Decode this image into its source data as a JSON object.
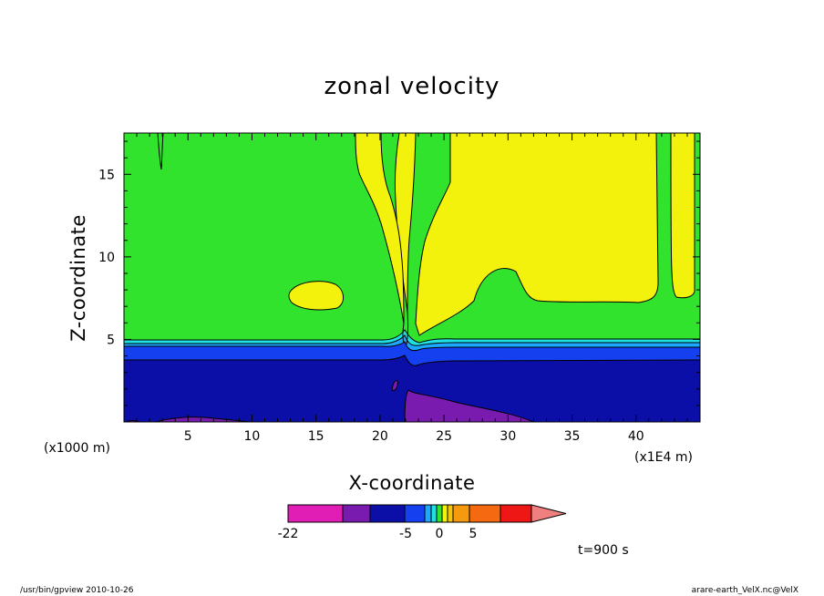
{
  "chart_data": {
    "type": "contour",
    "title": "zonal velocity",
    "xlabel": "X-coordinate",
    "ylabel": "Z-coordinate",
    "x_unit": "(x1E4 m)",
    "y_unit": "(x1000 m)",
    "xlim": [
      0,
      45
    ],
    "ylim": [
      0,
      17.5
    ],
    "x_ticks": [
      "5",
      "10",
      "15",
      "20",
      "25",
      "30",
      "35",
      "40"
    ],
    "x_tick_values": [
      5,
      10,
      15,
      20,
      25,
      30,
      35,
      40
    ],
    "y_ticks": [
      "5",
      "10",
      "15"
    ],
    "y_tick_values": [
      5,
      10,
      15
    ],
    "colorbar": {
      "labels": [
        "-22",
        "-5",
        "0",
        "5"
      ],
      "label_values": [
        -22,
        -5,
        0,
        5
      ],
      "colors": [
        "#e01db4",
        "#7a1bb0",
        "#0b0fa8",
        "#1540f0",
        "#1da8ff",
        "#1fe0e0",
        "#31e32d",
        "#f2f20d",
        "#f5c40e",
        "#f59a0f",
        "#f56a10",
        "#ef1616",
        "#f08080"
      ],
      "extend": "max"
    },
    "regions": {
      "negative_strong": "#7a1bb0",
      "negative": "#0b0fa8",
      "negative_weak": "#1540f0",
      "near_zero_negative": "#1da8ff",
      "near_zero": "#1fe0e0",
      "slightly_negative": "#31e32d",
      "slightly_positive": "#f2f20d"
    }
  },
  "annotation": {
    "time": "t=900 s"
  },
  "footer": {
    "left": "/usr/bin/gpview   2010-10-26",
    "right": "arare-earth_VelX.nc@VelX"
  }
}
